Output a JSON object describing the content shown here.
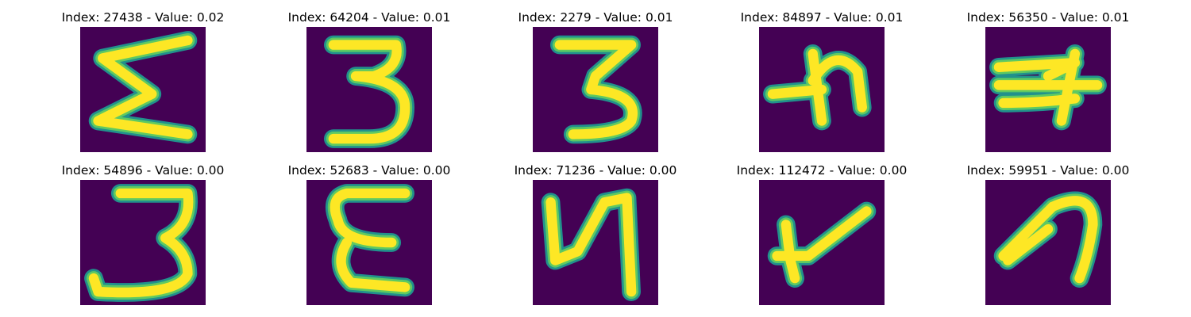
{
  "colors": {
    "background": "#440154",
    "stroke_core": "#fde725",
    "stroke_mid": "#5ec962",
    "stroke_edge": "#21918c"
  },
  "panels": [
    {
      "index_label": "Index: 27438 - Value: 0.02",
      "glyph": "sigma-shape"
    },
    {
      "index_label": "Index: 64204 - Value: 0.01",
      "glyph": "three"
    },
    {
      "index_label": "Index: 2279 - Value: 0.01",
      "glyph": "three-flat-top"
    },
    {
      "index_label": "Index: 84897 - Value: 0.01",
      "glyph": "cross-hook"
    },
    {
      "index_label": "Index: 56350 - Value: 0.01",
      "glyph": "crossed-three"
    },
    {
      "index_label": "Index: 54896 - Value: 0.00",
      "glyph": "three-tall"
    },
    {
      "index_label": "Index: 52683 - Value: 0.00",
      "glyph": "epsilon"
    },
    {
      "index_label": "Index: 71236 - Value: 0.00",
      "glyph": "zigzag-n"
    },
    {
      "index_label": "Index: 112472 - Value: 0.00",
      "glyph": "y-shape"
    },
    {
      "index_label": "Index: 59951 - Value: 0.00",
      "glyph": "hook-curve"
    }
  ]
}
